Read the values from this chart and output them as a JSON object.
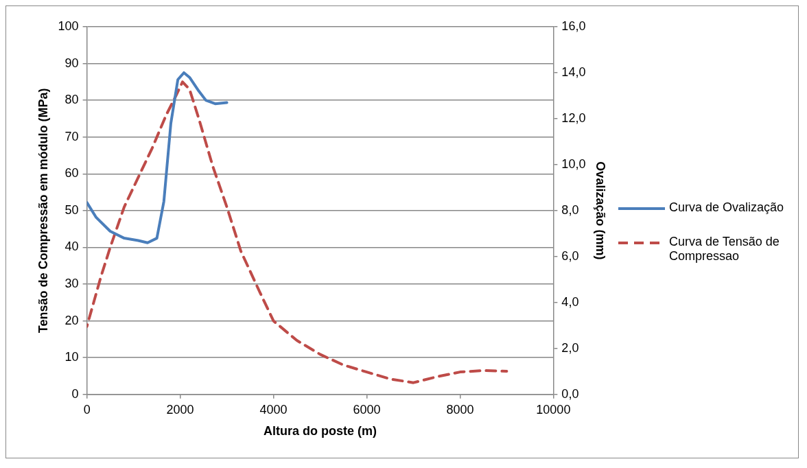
{
  "chart_data": {
    "type": "line",
    "xlabel": "Altura do poste (m)",
    "ylabel": "Tensão de Compressão em módulo (MPa)",
    "y2label": "Ovalização (mm)",
    "xlim": [
      0,
      10000
    ],
    "xticks": [
      0,
      2000,
      4000,
      6000,
      8000,
      10000
    ],
    "ylim": [
      0,
      100
    ],
    "yticks": [
      0,
      10,
      20,
      30,
      40,
      50,
      60,
      70,
      80,
      90,
      100
    ],
    "y2lim": [
      0,
      16
    ],
    "y2ticks": [
      {
        "value": 0,
        "label": "0,0"
      },
      {
        "value": 2,
        "label": "2,0"
      },
      {
        "value": 4,
        "label": "4,0"
      },
      {
        "value": 6,
        "label": "6,0"
      },
      {
        "value": 8,
        "label": "8,0"
      },
      {
        "value": 10,
        "label": "10,0"
      },
      {
        "value": 12,
        "label": "12,0"
      },
      {
        "value": 14,
        "label": "14,0"
      },
      {
        "value": 16,
        "label": "16,0"
      }
    ],
    "grid": "y",
    "legend": "right",
    "marker": "none",
    "series": [
      {
        "name": "Curva de Ovalização",
        "color": "#4a7ebb",
        "axis": "y2",
        "line_style": "solid",
        "x": [
          0,
          200,
          500,
          800,
          1100,
          1300,
          1500,
          1650,
          1800,
          1950,
          2080,
          2200,
          2400,
          2550,
          2750,
          3000
        ],
        "values": [
          8.35,
          7.7,
          7.1,
          6.8,
          6.7,
          6.6,
          6.8,
          8.4,
          11.8,
          13.7,
          14.0,
          13.8,
          13.2,
          12.8,
          12.65,
          12.7
        ]
      },
      {
        "name": "Curva de Tensão de Compressao",
        "color": "#be4b48",
        "axis": "y",
        "line_style": "dashed",
        "x": [
          0,
          300,
          500,
          800,
          1100,
          1400,
          1700,
          1900,
          2050,
          2200,
          2400,
          2700,
          3000,
          3300,
          3700,
          4000,
          4500,
          5000,
          5500,
          6000,
          6500,
          7000,
          7500,
          8000,
          8500,
          9000
        ],
        "values": [
          18.5,
          32,
          40,
          51,
          59,
          67,
          76,
          81,
          85,
          83,
          75,
          62,
          51,
          39,
          28,
          20,
          14.7,
          10.9,
          8,
          6.1,
          4.2,
          3.2,
          4.8,
          6.1,
          6.5,
          6.3
        ]
      }
    ]
  }
}
